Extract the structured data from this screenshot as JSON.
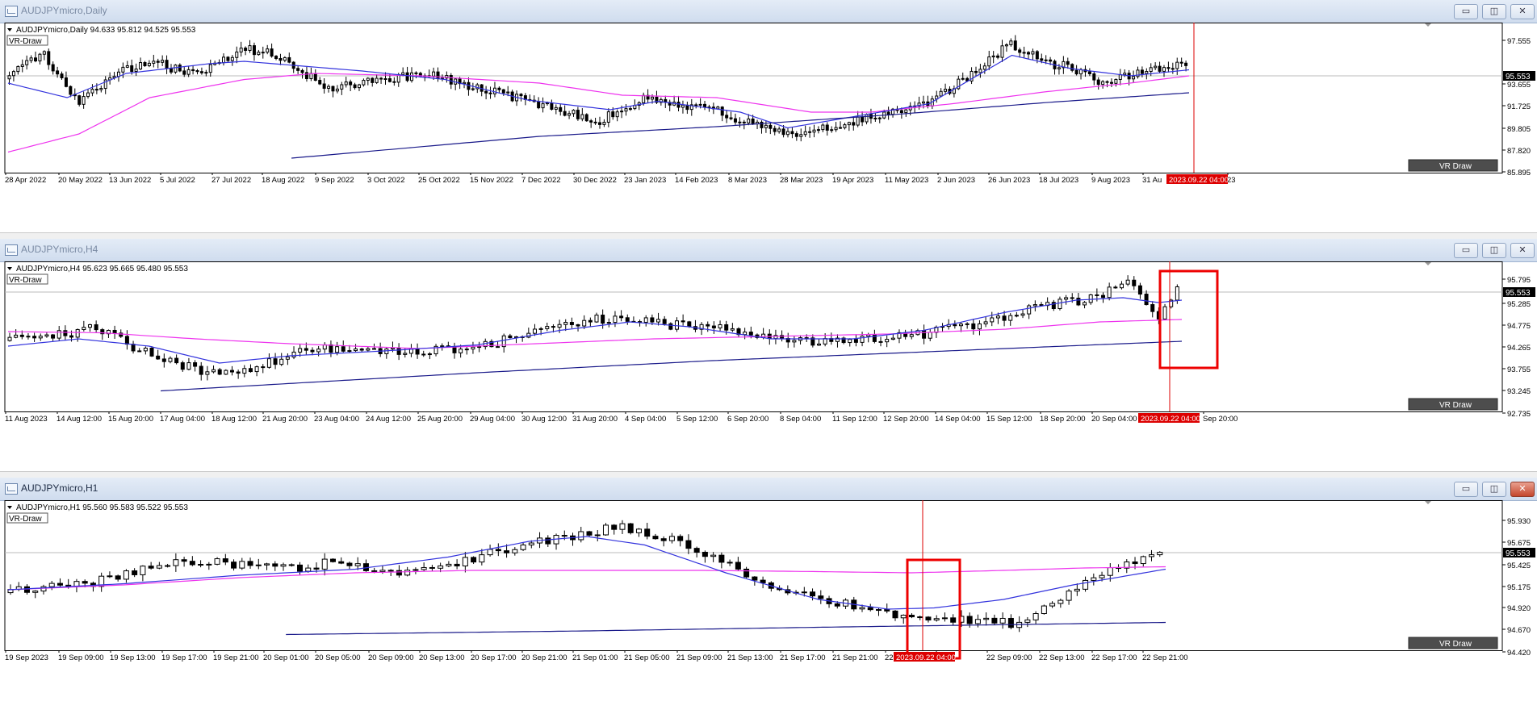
{
  "windows": [
    {
      "title": "AUDJPYmicro,Daily",
      "active": false,
      "info_line": "AUDJPYmicro,Daily  94.633 95.812 94.525 95.553",
      "indicator_label": "VR-Draw",
      "vr_button_label": "VR Draw",
      "price_ticks": [
        "97.555",
        "95.553",
        "93.655",
        "91.725",
        "89.805",
        "87.820",
        "85.895"
      ],
      "current_price": "95.553",
      "time_labels": [
        "28 Apr 2022",
        "20 May 2022",
        "13 Jun 2022",
        "5 Jul 2022",
        "27 Jul 2022",
        "18 Aug 2022",
        "9 Sep 2022",
        "3 Oct 2022",
        "25 Oct 2022",
        "15 Nov 2022",
        "7 Dec 2022",
        "30 Dec 2022",
        "23 Jan 2023",
        "14 Feb 2023",
        "8 Mar 2023",
        "28 Mar 2023",
        "19 Apr 2023",
        "11 May 2023",
        "2 Jun 2023",
        "26 Jun 2023",
        "18 Jul 2023",
        "9 Aug 2023",
        "31 Au",
        "23"
      ],
      "cursor_label": "2023.09.22 04:00"
    },
    {
      "title": "AUDJPYmicro,H4",
      "active": false,
      "info_line": "AUDJPYmicro,H4  95.623 95.665 95.480 95.553",
      "indicator_label": "VR-Draw",
      "vr_button_label": "VR Draw",
      "price_ticks": [
        "95.795",
        "95.553",
        "95.285",
        "94.775",
        "94.265",
        "93.755",
        "93.245",
        "92.735"
      ],
      "current_price": "95.553",
      "time_labels": [
        "11 Aug 2023",
        "14 Aug 12:00",
        "15 Aug 20:00",
        "17 Aug 04:00",
        "18 Aug 12:00",
        "21 Aug 20:00",
        "23 Aug 04:00",
        "24 Aug 12:00",
        "25 Aug 20:00",
        "29 Aug 04:00",
        "30 Aug 12:00",
        "31 Aug 20:00",
        "4 Sep 04:00",
        "5 Sep 12:00",
        "6 Sep 20:00",
        "8 Sep 04:00",
        "11 Sep 12:00",
        "12 Sep 20:00",
        "14 Sep 04:00",
        "15 Sep 12:00",
        "18 Sep 20:00",
        "20 Sep 04:00",
        "Sep 20:00"
      ],
      "cursor_label": "2023.09.22 04:00"
    },
    {
      "title": "AUDJPYmicro,H1",
      "active": true,
      "info_line": "AUDJPYmicro,H1  95.560 95.583 95.522 95.553",
      "indicator_label": "VR-Draw",
      "vr_button_label": "VR Draw",
      "price_ticks": [
        "95.930",
        "95.675",
        "95.553",
        "95.425",
        "95.175",
        "94.920",
        "94.670",
        "94.420"
      ],
      "current_price": "95.553",
      "time_labels": [
        "19 Sep 2023",
        "19 Sep 09:00",
        "19 Sep 13:00",
        "19 Sep 17:00",
        "19 Sep 21:00",
        "20 Sep 01:00",
        "20 Sep 05:00",
        "20 Sep 09:00",
        "20 Sep 13:00",
        "20 Sep 17:00",
        "20 Sep 21:00",
        "21 Sep 01:00",
        "21 Sep 05:00",
        "21 Sep 09:00",
        "21 Sep 13:00",
        "21 Sep 17:00",
        "21 Sep 21:00",
        "22",
        "05:00",
        "22 Sep 09:00",
        "22 Sep 13:00",
        "22 Sep 17:00",
        "22 Sep 21:00"
      ],
      "cursor_label": "2023.09.22 04:00"
    }
  ],
  "window_buttons": {
    "minimize": "▭",
    "restore": "◫",
    "close": "✕"
  },
  "colors": {
    "fast_ma": "#3333dd",
    "medium_ma": "#ee33ee",
    "slow_ma": "#1a1a8a",
    "cursor_line": "#dd0000",
    "highlight_box": "#ee0000",
    "candle_bear": "#000000",
    "candle_bull": "#ffffff",
    "price_label_bg": "#000000"
  }
}
